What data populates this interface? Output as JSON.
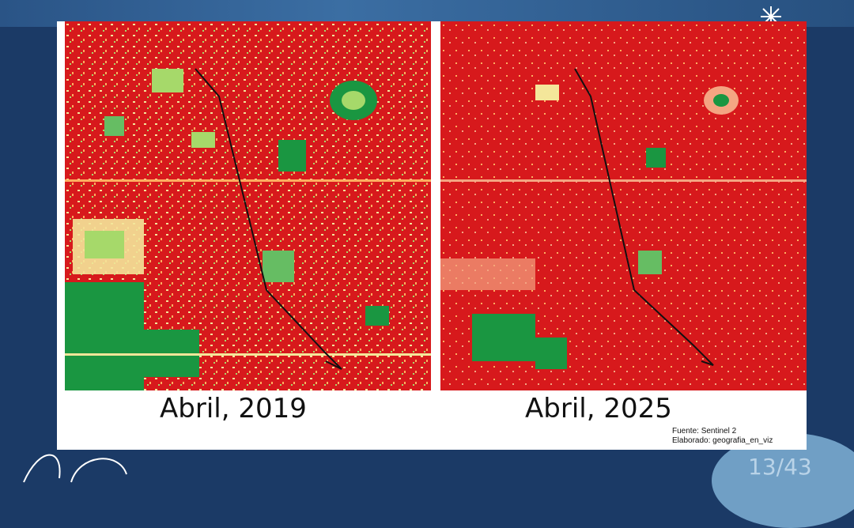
{
  "slide": {
    "left_panel": {
      "caption": "Abril, 2019"
    },
    "right_panel": {
      "caption": "Abril, 2025"
    },
    "source_line": "Fuente: Sentinel 2",
    "author_line": "Elaborado: geografia_en_viz",
    "page_number": "13/43"
  },
  "colors": {
    "background": "#1b3a66",
    "low_vegetation": "#d7191c",
    "medium_vegetation": "#f4e69a",
    "high_vegetation": "#1a9641"
  }
}
